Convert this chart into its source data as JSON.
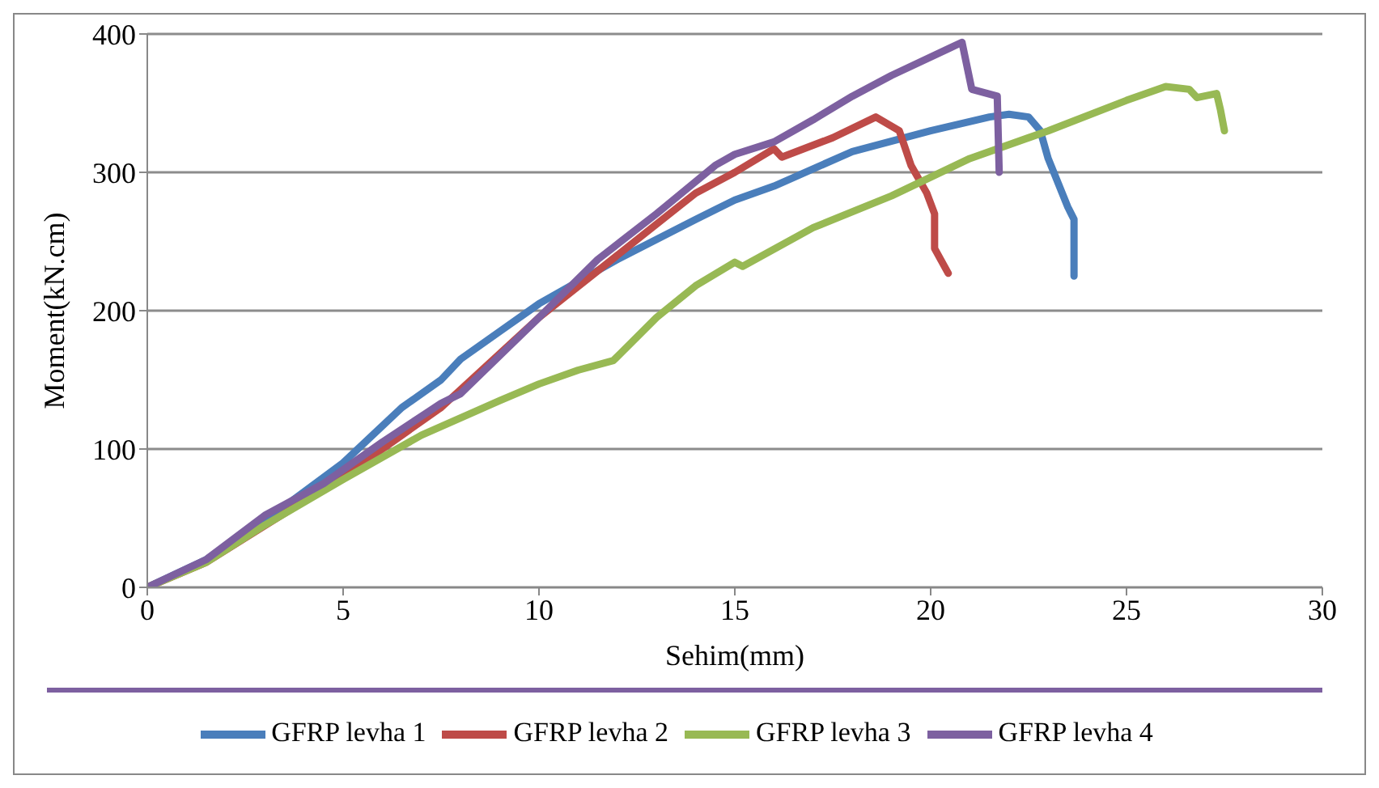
{
  "chart_data": {
    "type": "line",
    "xlabel": "Sehim(mm)",
    "ylabel": "Moment(kN.cm)",
    "xlim": [
      0,
      30
    ],
    "xticks": [
      0,
      5,
      10,
      15,
      20,
      25,
      30
    ],
    "ylim": [
      0,
      400
    ],
    "yticks": [
      0,
      100,
      200,
      300,
      400
    ],
    "grid": "y",
    "legend": "bottom",
    "marker": "none",
    "line_style": "solid",
    "series": [
      {
        "name": "GFRP levha 1",
        "color": "#4a7ebb",
        "x": [
          0,
          1.5,
          3,
          5,
          6.5,
          7.5,
          8,
          9,
          10,
          12,
          14,
          15,
          16,
          18,
          20,
          21.5,
          22,
          22.5,
          22.8,
          23,
          23.5,
          23.66,
          23.66
        ],
        "values": [
          0,
          20,
          48,
          90,
          130,
          150,
          165,
          185,
          205,
          237,
          266,
          280,
          290,
          315,
          330,
          340,
          342,
          340,
          330,
          310,
          275,
          266,
          225
        ]
      },
      {
        "name": "GFRP levha 2",
        "color": "#be4b48",
        "x": [
          0,
          1.5,
          5,
          7.5,
          10,
          12,
          14,
          15,
          16,
          16.2,
          17.5,
          18.6,
          19.2,
          19.5,
          19.9,
          20.1,
          20.1,
          20.45
        ],
        "values": [
          0,
          18,
          80,
          130,
          195,
          240,
          285,
          300,
          317,
          311,
          325,
          340,
          330,
          305,
          285,
          270,
          245,
          227
        ]
      },
      {
        "name": "GFRP levha 3",
        "color": "#98b954",
        "x": [
          0,
          1.5,
          3,
          5,
          7,
          9,
          10,
          11,
          11.9,
          13,
          14,
          15,
          15.2,
          17,
          19,
          21,
          23,
          25,
          26,
          26.6,
          26.8,
          27.3,
          27.4,
          27.5
        ],
        "values": [
          0,
          18,
          45,
          78,
          110,
          135,
          147,
          157,
          164,
          195,
          218,
          235,
          232,
          260,
          283,
          310,
          330,
          352,
          362,
          360,
          354,
          357,
          345,
          330
        ]
      },
      {
        "name": "GFRP levha 4",
        "color": "#7d60a0",
        "x": [
          0,
          1.5,
          3,
          4.5,
          6,
          7.5,
          8,
          10,
          11.5,
          13,
          14.5,
          15,
          16,
          17,
          18,
          19,
          20.5,
          20.8,
          21.05,
          21.7,
          21.75
        ],
        "values": [
          0,
          20,
          52,
          75,
          105,
          133,
          140,
          195,
          237,
          270,
          305,
          313,
          322,
          338,
          355,
          370,
          390,
          394,
          360,
          355,
          300
        ]
      }
    ]
  }
}
